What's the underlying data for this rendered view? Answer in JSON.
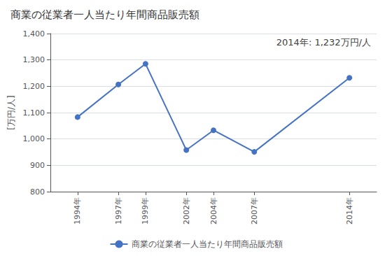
{
  "chart_data": {
    "type": "line",
    "title": "商業の従業者一人当たり年間商品販売額",
    "ylabel": "[万円/人]",
    "annotation": "2014年: 1,232万円/人",
    "x": [
      1994,
      1997,
      1999,
      2002,
      2004,
      2007,
      2014
    ],
    "series": [
      {
        "name": "商業の従業者一人当たり年間商品販売額",
        "color": "#4472C4",
        "marker": "circle",
        "values": [
          1083,
          1207,
          1285,
          958,
          1033,
          951,
          1232
        ]
      }
    ],
    "xlim": [
      1992,
      2016
    ],
    "xticks": [
      {
        "value": 1994,
        "label": "1994年"
      },
      {
        "value": 1997,
        "label": "1997年"
      },
      {
        "value": 1999,
        "label": "1999年"
      },
      {
        "value": 2002,
        "label": "2002年"
      },
      {
        "value": 2004,
        "label": "2004年"
      },
      {
        "value": 2007,
        "label": "2007年"
      },
      {
        "value": 2014,
        "label": "2014年"
      }
    ],
    "ylim": [
      800,
      1400
    ],
    "yticks": [
      800,
      900,
      {
        "value": 1000,
        "label": "1,000"
      },
      {
        "value": 1100,
        "label": "1,100"
      },
      {
        "value": 1200,
        "label": "1,200"
      },
      {
        "value": 1300,
        "label": "1,300"
      },
      {
        "value": 1400,
        "label": "1,400"
      }
    ],
    "grid": true,
    "legend": "bottom"
  }
}
